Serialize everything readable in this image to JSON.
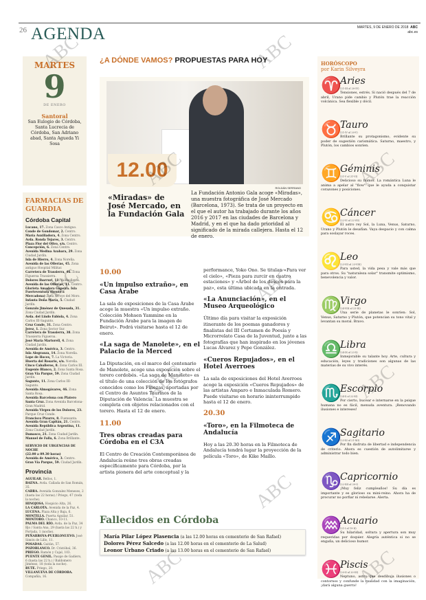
{
  "header": {
    "page_number": "26",
    "section": "AGENDA",
    "date": "MARTES, 9 DE ENERO DE 2018",
    "brand": "ABC",
    "site": "abc.es"
  },
  "day": {
    "name": "MARTES",
    "number": "9",
    "month": "DE ENERO",
    "santoral_title": "Santoral",
    "santoral": "San Eulogio de Córdoba, Santa Lucrecia de Córdoba, San Adriano abad, Santa Agueda Yi Sosa"
  },
  "pharmacies": {
    "title": "FARMACIAS DE GUARDIA",
    "capital_title": "Córdoba Capital",
    "capital": [
      [
        "Lucano, 17.",
        "Zona Casco Antiguo."
      ],
      [
        "Conde de Gondomar, 2.",
        "Centro."
      ],
      [
        "María Auxiliadora, 4.",
        "Zona Centro."
      ],
      [
        "Avda. Ronda Tejares, 3.",
        "Centro."
      ],
      [
        "Plaza Flor del Olivo, s/n.",
        "Centro."
      ],
      [
        "Concepción, 6.",
        "Zona Centro."
      ],
      [
        "Avenida Medina Azahara, 29.",
        "Zona Ciudad Jardín."
      ],
      [
        "Isla de Hierro, 4.",
        "Zona Noreña."
      ],
      [
        "Avenida de las Ollerías, 45.",
        "Zona antiguo Hospital Militar."
      ],
      [
        "Carretera de Trassierra, 46.",
        "Zona Figueroa Trassierra."
      ],
      [
        "Dolores Ibarruri, 11.",
        "Valdeolleros."
      ],
      [
        "Avenida de las Ollerías, 11.",
        "Centro."
      ],
      [
        "Glorieta Amadora Gapeira. Isla Fuerteventura (frente a Mercadona)",
        "Zona Arroyo del Moro."
      ],
      [
        "Infanta Doña María, 5.",
        "Ciudad Jardín."
      ],
      [
        "Gonzalo Jiménez de Quesada, 31.",
        "Zona Ciudad Jardín."
      ],
      [
        "Avda. del Lindo Fabiola, 4.",
        "Zona Carlos III-Sagunto."
      ],
      [
        "Cruz Conde, 31.",
        "Zona Centro."
      ],
      [
        "Jerez, 1.",
        "Zona Sector Sur."
      ],
      [
        "Carretera de Trassierra, 38.",
        "Zona Trassierra Figueroa."
      ],
      [
        "José María Martorell, 4.",
        "Zona Ciudad Jardín."
      ],
      [
        "Avenida de América, 3.",
        "Centro."
      ],
      [
        "Isla Alegranza, 14.",
        "Zona Noreña."
      ],
      [
        "Lope de Hoces, 7.",
        "La Victoria."
      ],
      [
        "Huerta del Rosario, s/n.",
        "Noreña."
      ],
      [
        "Cinco Caballeros, 8.",
        "Zona Carlos III."
      ],
      [
        "Eugenio Blanco, 2.",
        "Zona Santa Rosa."
      ],
      [
        "Gran Vía Parque, 59.",
        "Zona Ciudad Jardín."
      ],
      [
        "Sagunto, 11.",
        "Zona Carlos III-Sagunto."
      ],
      [
        "Avenida Almogávares, 46.",
        "Zona Santa Rosa."
      ],
      [
        "Avenida Barcelona con Platero Santa Cruz.",
        "Zona Avenida Barcelona-Gran Madrid."
      ],
      [
        "Avenida Virgen de los Dolores, 23.",
        "Parque Cruz Conde."
      ],
      [
        "Francisco Pizarro, 8.",
        "Fuensanta."
      ],
      [
        "Avenida Gran Capitán, 21.",
        "Centro."
      ],
      [
        "Avenida República Argentina, 11.",
        "Zona Ciudad Jardín."
      ],
      [
        "Damasco, 21.",
        "Zona Ciudad Jardín."
      ],
      [
        "Manuel de Falla, 6.",
        "Zona Brillante."
      ]
    ],
    "urgent_title": "SERVICIO DE URGENCIAS DE NOCHE",
    "urgent_hours": "(22.00 a 09.30 horas)",
    "urgent": [
      [
        "Avenida de América, 3.",
        "Centro."
      ],
      [
        "Gran Vía Parque, 59.",
        "Ciudad Jardín."
      ]
    ],
    "province_title": "Provincia",
    "province": [
      [
        "AGUILAR.",
        "Bellos, 1."
      ],
      [
        "BAENA.",
        "Avda. Cañada de San Román, 35."
      ],
      [
        "CABRA.",
        "Avenida Gonzalez Meneses, 2 (hasta las 22 horas) / Priego, 47 (toda la noche)."
      ],
      [
        "HINOJOSA.",
        "Hospicio Alta, 26."
      ],
      [
        "LA CARLOTA.",
        "Avenida de la Paz, 4."
      ],
      [
        "LUCENA.",
        "Plaza Alta y Baja, 6."
      ],
      [
        "MONTILLA.",
        "Puerta Aguilar, 51."
      ],
      [
        "MONTORO.",
        "Chanco, 10-11."
      ],
      [
        "PALMA DEL RÍO.",
        "Avda. de la Paz, 34 Bjo / Santa Ana, 29 (hasta las 22 h.) y Portada, 1 (noche)."
      ],
      [
        "PEÑARROYA-PUEBLONUEVO.",
        "José Simón de Lillo, 11."
      ],
      [
        "POSADAS.",
        "Gaitán, 57."
      ],
      [
        "POZOBLANCO.",
        "Dr. Cristóbal, 36."
      ],
      [
        "PRIEGO.",
        "Ramón y Cajal, 103."
      ],
      [
        "PUENTE GENIL.",
        "Pasaje de Gadiero, 6 (hasta las 22 h.) / Baldomero Jiménez, 18 (toda la noche)."
      ],
      [
        "RUTE.",
        "Priego, 20."
      ],
      [
        "VILLANUEVA DE CÓRDOBA.",
        "Compañía, 16."
      ]
    ]
  },
  "main": {
    "headline_a": "¿A DÓNDE VAMOS?",
    "headline_b": "PROPUESTAS PARA HOY",
    "featured": {
      "credit": "ROLDÁN SERRANO",
      "time": "12.00",
      "title": "«Miradas» de José Mercado, en la Fundación Gala",
      "text": "La Fundación Antonio Gala acoge «Miradas», una muestra fotográfica de José Mercado (Barcelona, 1973). Se trata de un proyecto en el que el autor ha trabajado durante los años 2016 y 2017 en las ciudades de Barcelona y Madrid, y en el que ha dado prioridad al significado de la mirada callejera. Hasta el 12 de enero."
    },
    "events": [
      {
        "time": "10.00",
        "title": "«Un impulso extraño», en Casa Árabe",
        "text": "La sala de exposiciones de la Casa Árabe acoge la muestra «Un impulso extraño. Colección Mohsen Yammine en la Fundación Árabe para la imagen de Beirut». Podrá visitarse hasta el 12 de enero."
      },
      {
        "title": "«La saga de Manolete», en el Palacio de la Merced",
        "text": "La Diputación, en el marco del centenario de Manolete, acoge una exposición sobre el torero cordobés. «La saga de Manolete» es el título de una colección de los fotógrafos conocidos como los Finezas, aportadas por el Centro de Asuntos Taurinos de la Diputación de Valencia. La muestra se completa con objetos relacionados con el torero. Hasta el 12 de enero."
      },
      {
        "time": "11.00",
        "title": "Tres obras creadas para Córdoba en el C3A",
        "text": "El Centro de Creación Contemporánea de Andalucía reúne tres obras creadas específicamente para Córdoba, por la artista pionera del arte conceptual y la"
      },
      {
        "text": "performance, Yoko Ono. Se titulan «Para ver el cielo», «Pieza para zurcir en cuatro estaciones» y «Árbol de los deseos para la paz», esta última ubicada en la entrada."
      },
      {
        "title": "«La Anunciación», en el Museo Arqueológico",
        "text": "Último día para visitar la exposición itinerante de los poemas ganadores y finalistas del III Certamen de Poesía y Microrrelato Casa de la Juventud, junto a las fotografías que han inspirado en los jóvenes Lucas Álvarez y Pepe González."
      },
      {
        "title": "«Cueros Repujados», en el Hotel Averroes",
        "text": "La sala de exposiciones del Hotel Averroes acoge la exposición «Cueros Repujados» de las artistas Amparo e Inmaculada Romero. Puede visitarse en horario ininterrumpido hasta el 12 de enero."
      },
      {
        "time": "20.30",
        "title": "«Toro», en la Filmoteca de Andalucía",
        "text": "Hoy a las 20.30 horas en la Filmoteca de Andalucía tendrá lugar la proyección de la película «Toro», de Kike Maíllo."
      }
    ]
  },
  "obituaries": {
    "title": "Fallecidos en Córdoba",
    "items": [
      [
        "María Pilar López Plasencia",
        "(a las 12.00 horas en cementerio de San Rafael)"
      ],
      [
        "Dolores Pérez Salcedo",
        "(a las 12.00 horas en el cementerio de La Salud)"
      ],
      [
        "Leonor Urbano Criado",
        "(a las 13.00 horas en el cementerio de San Rafael)"
      ]
    ]
  },
  "horoscope": {
    "title": "HORÓSCOPO",
    "author": "por Karin Silveyra",
    "accent": "#5b86c8",
    "signs": [
      {
        "icon": "♈",
        "name": "Aries",
        "dates": "(21-III al 20-IV)",
        "text": "Tensiones, estrés. Si nació después del 7 de abril, Urano pide cambio y Plutón trae la reacción volcánica. Sea flexible y dócil."
      },
      {
        "icon": "♉",
        "name": "Tauro",
        "dates": "(21-IV al 20-V)",
        "text": "Brillante su protagonismo, evidente su poder de sugestión carismática. Saturno, maestro, y Plutón, los cambios sonríen."
      },
      {
        "icon": "♊",
        "name": "Géminis",
        "dates": "(21-V al 21-VI)",
        "text": "Delicioso su humor. La romántica Luna le anima a apelar al \"flow\" que le ayuda a conquistar corazones y posiciones."
      },
      {
        "icon": "♋",
        "name": "Cáncer",
        "dates": "(22-VI al 22-VII)",
        "text": "El astro rey Sol, la Luna, Venus, Saturno, Urano y Plutón le desafían. Vaya despacio y con calma para soslayar roces."
      },
      {
        "icon": "♌",
        "name": "Leo",
        "dates": "(23-VII al 23-VIII)",
        "text": "Para usted, la vida pesa y vale más que para otros. Su \"naturaleza solar\" transmite optimismo, benevolencia y valor."
      },
      {
        "icon": "♍",
        "name": "Virgo",
        "dates": "(24-VIII al 23-IX)",
        "text": "Una serie de planetas le sonríen: Sol, Venus, Saturno y Plutón, que potencian su tono vital y levantan su moral. Bravo."
      },
      {
        "icon": "♎",
        "name": "Libra",
        "dates": "(24-IX al 23-X)",
        "text": "Inmejorable su talante hoy. Arte, cultura y educación, leyes y tradiciones son algunas de las materias de su vivo interés."
      },
      {
        "icon": "♏",
        "name": "Escorpio",
        "dates": "(24-X al 22-XI)",
        "text": "Por cierto, bucear e internarse en la psique humana no es fácil, menuda aventura. ¡Renovando ilusiones e intereses!"
      },
      {
        "icon": "♐",
        "name": "Sagitario",
        "dates": "(23-XI al 21-XII)",
        "text": "Por fin disfruta de libertad e independencia de criterio. Ahora es cuestión de autolimitarse y administrar todo bien."
      },
      {
        "icon": "♑",
        "name": "Capricornio",
        "dates": "(22-XII al 20-I)",
        "text": "¡Muy feliz cumpleaños! Su día es importante y es glorioso su mini-reino. Ahora ha de procurar no porfiar ni rebelarse. Alerta."
      },
      {
        "icon": "♒",
        "name": "Acuario",
        "dates": "(21-I al 19-II)",
        "text": "Su hilaridad, soltura y apertura son muy requeridas por doquier. Alegría auténtica si no se engaña, un delicioso humor."
      },
      {
        "icon": "♓",
        "name": "Piscis",
        "dates": "(20-II al 20-III)",
        "text": "Neptuno, astro que desdibuja ilusiones o contornos y confunde la realidad con la imaginación, ¡dará alguna guerra!"
      }
    ]
  },
  "watermark": "ABC",
  "colors": {
    "accent": "#c8702a",
    "section": "#2a5c58",
    "green": "#4d6b4a"
  }
}
